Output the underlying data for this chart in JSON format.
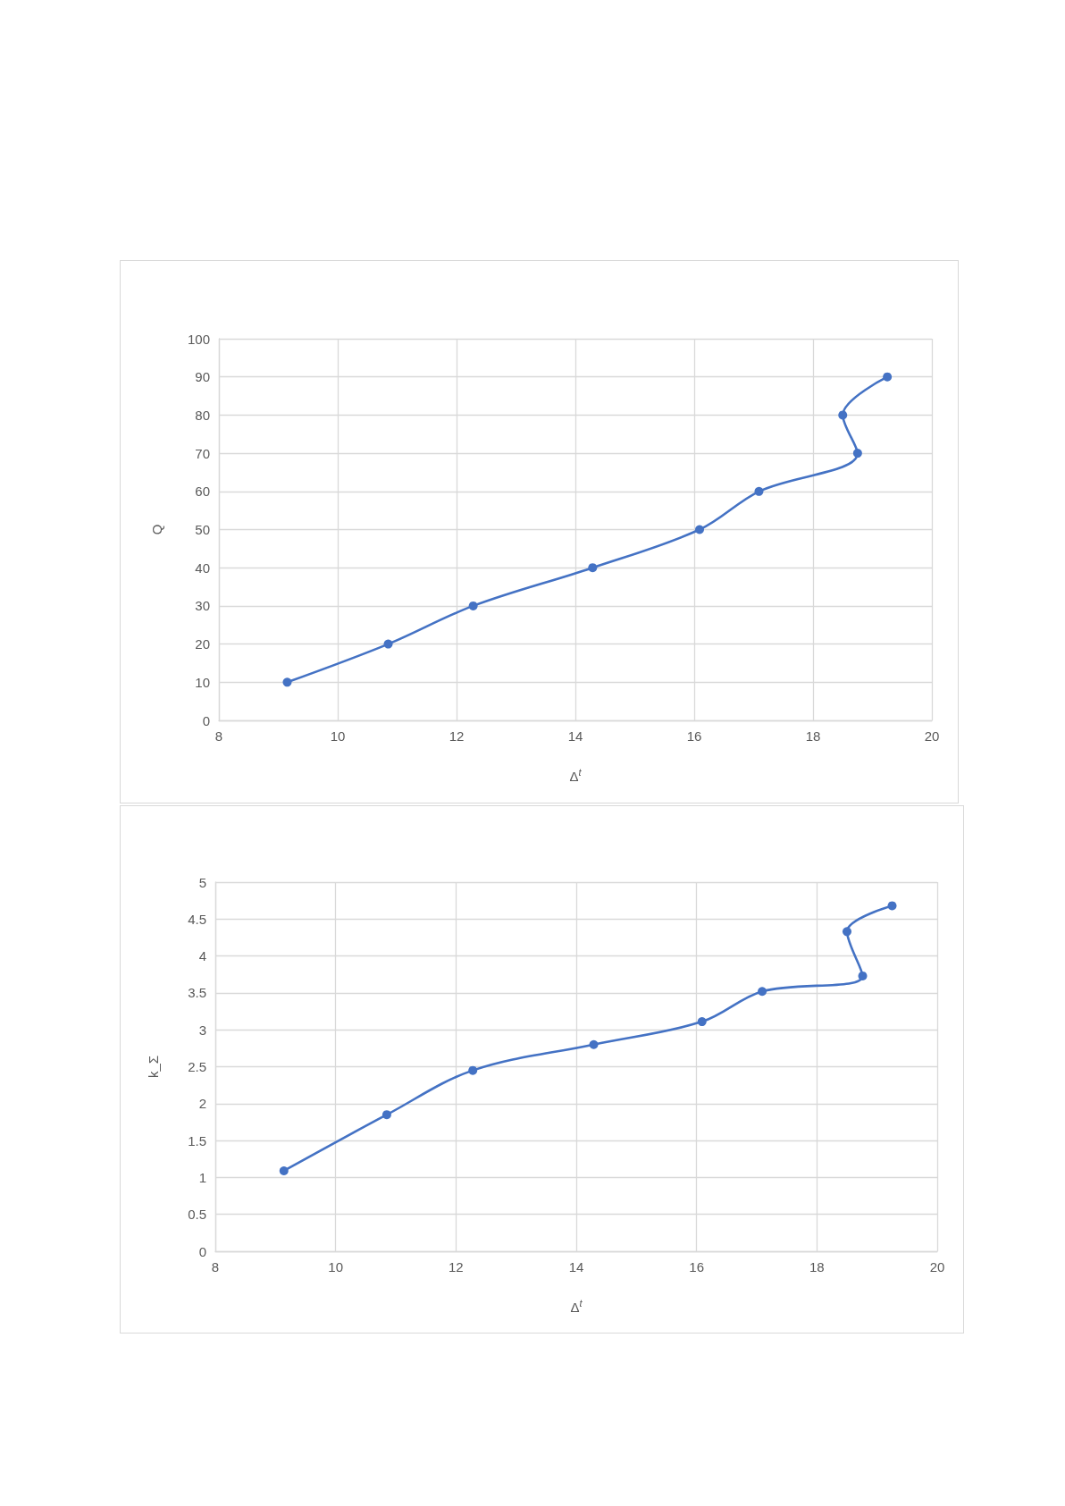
{
  "chart_data": [
    {
      "type": "line",
      "xlabel": "Δ$^{t}$",
      "ylabel": "Q",
      "color": "#4472c4",
      "x": [
        9.15,
        10.85,
        12.28,
        14.29,
        16.09,
        17.09,
        18.75,
        18.5,
        19.25
      ],
      "values": [
        10,
        20,
        30,
        40,
        50,
        60,
        70,
        80,
        90
      ],
      "xlim": [
        8,
        20
      ],
      "xticks": [
        8,
        10,
        12,
        14,
        16,
        18,
        20
      ],
      "ylim": [
        0,
        100
      ],
      "yticks": [
        0,
        10,
        20,
        30,
        40,
        50,
        60,
        70,
        80,
        90,
        100
      ],
      "grid": true,
      "marker": "circle"
    },
    {
      "type": "line",
      "xlabel": "Δ$^{t}$",
      "ylabel": "k_Σ",
      "color": "#4472c4",
      "x": [
        9.14,
        10.85,
        12.28,
        14.29,
        16.09,
        17.09,
        18.76,
        18.5,
        19.25
      ],
      "values": [
        1.09,
        1.85,
        2.45,
        2.8,
        3.11,
        3.52,
        3.73,
        4.33,
        4.68
      ],
      "xlim": [
        8,
        20
      ],
      "xticks": [
        8,
        10,
        12,
        14,
        16,
        18,
        20
      ],
      "ylim": [
        0,
        5
      ],
      "yticks": [
        0,
        0.5,
        1,
        1.5,
        2,
        2.5,
        3,
        3.5,
        4,
        4.5,
        5
      ],
      "grid": true,
      "marker": "circle"
    }
  ]
}
